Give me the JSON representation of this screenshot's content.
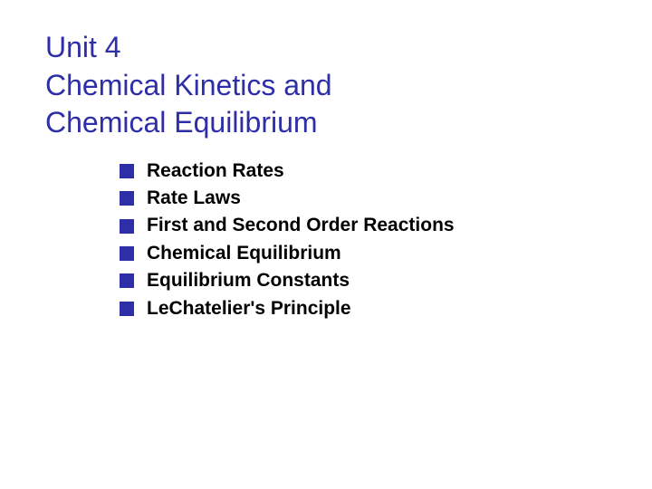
{
  "title": {
    "line1": "Unit 4",
    "line2": "Chemical Kinetics and",
    "line3": "Chemical Equilibrium",
    "color": "#2e2ea8",
    "fontsize": 32
  },
  "bullets": {
    "items": [
      "Reaction Rates",
      "Rate Laws",
      "First and Second Order Reactions",
      "Chemical Equilibrium",
      "Equilibrium Constants",
      "LeChatelier's Principle"
    ],
    "marker_color": "#2e2ea8",
    "marker_size": 16,
    "text_color": "#000000",
    "fontsize": 21,
    "font_weight": 700
  },
  "background_color": "#ffffff"
}
